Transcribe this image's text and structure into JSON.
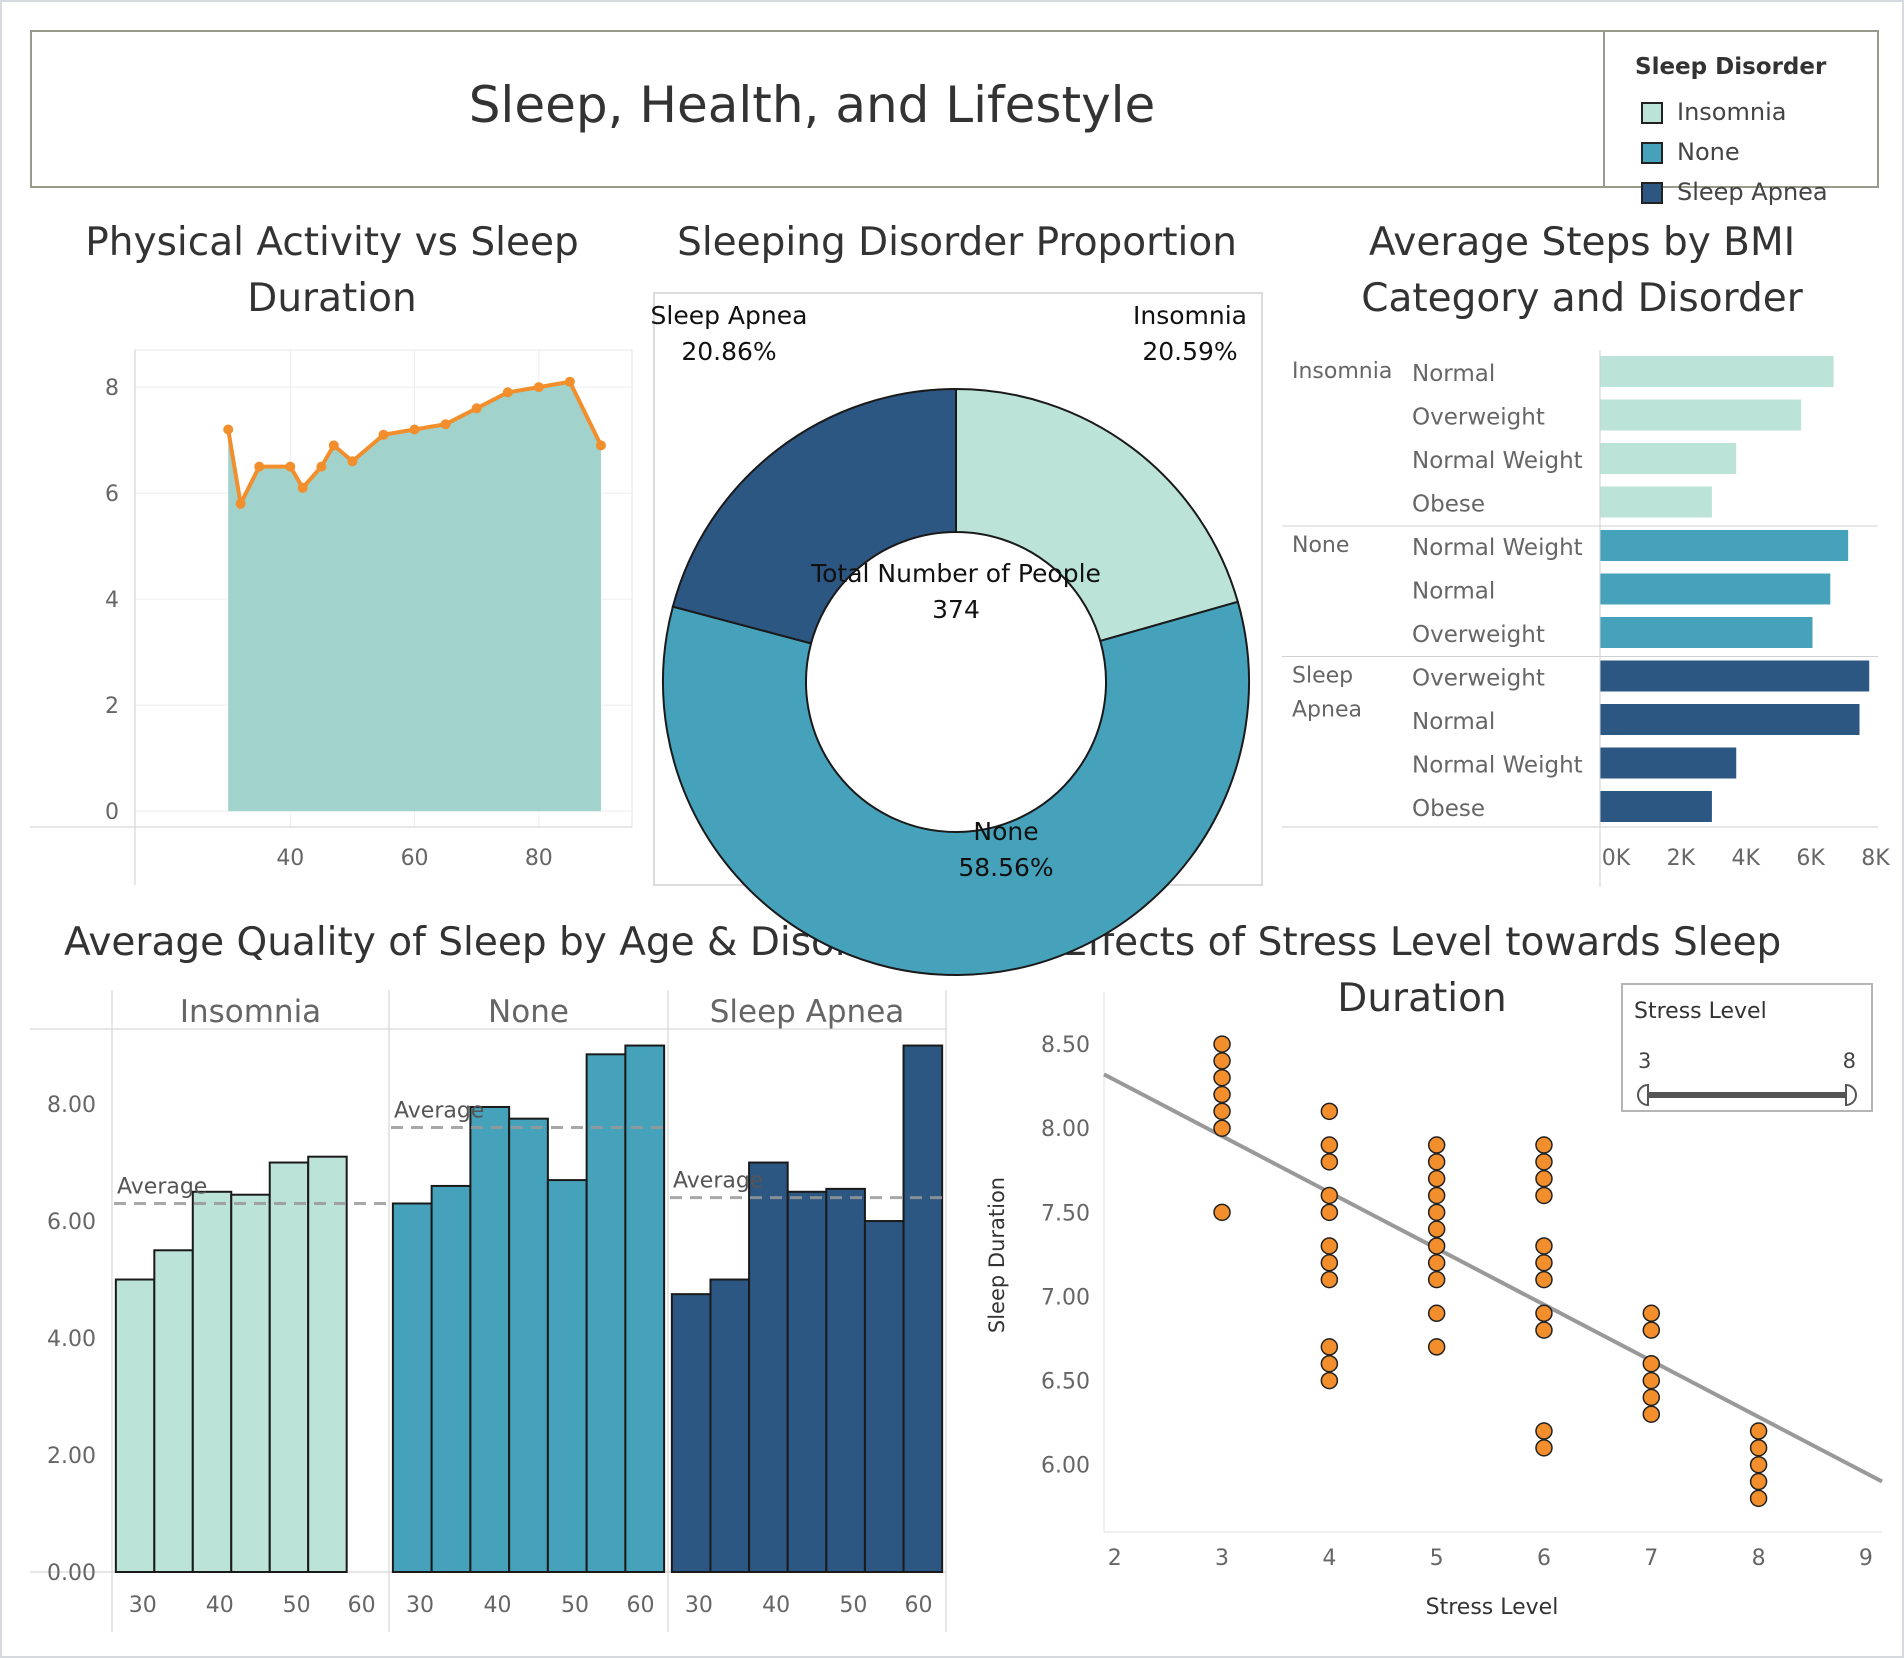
{
  "dashboard": {
    "title": "Sleep, Health, and Lifestyle",
    "legend": {
      "title": "Sleep Disorder",
      "items": [
        {
          "label": "Insomnia",
          "color": "#bbe3d8"
        },
        {
          "label": "None",
          "color": "#46a2bb"
        },
        {
          "label": "Sleep Apnea",
          "color": "#2d5783"
        }
      ]
    }
  },
  "panels": {
    "activity": {
      "title_line1": "Physical Activity vs Sleep",
      "title_line2": "Duration"
    },
    "proportion": {
      "title": "Sleeping Disorder Proportion"
    },
    "steps": {
      "title_line1": "Average Steps by BMI",
      "title_line2": "Category and Disorder"
    },
    "quality": {
      "title": "Average Quality of Sleep by Age & Disorder"
    },
    "stress": {
      "title": "Effects of Stress Level towards Sleep Duration"
    }
  },
  "chart_data": [
    {
      "id": "activity",
      "type": "line",
      "area": true,
      "x": [
        30,
        32,
        35,
        40,
        42,
        45,
        47,
        50,
        55,
        60,
        65,
        70,
        75,
        80,
        85,
        90
      ],
      "y": [
        7.2,
        5.8,
        6.5,
        6.5,
        6.1,
        6.5,
        6.9,
        6.6,
        7.1,
        7.2,
        7.3,
        7.6,
        7.9,
        8.0,
        8.1,
        6.9
      ],
      "xlim": [
        15,
        95
      ],
      "ylim": [
        -0.3,
        8.7
      ],
      "xticks": [
        40,
        60,
        80
      ],
      "yticks": [
        0,
        2,
        4,
        6,
        8
      ],
      "line_color": "#f28e2b",
      "area_color": "#a1d2cc",
      "grid": true
    },
    {
      "id": "proportion",
      "type": "pie",
      "donut": true,
      "center_label": "Total Number of People",
      "center_value": "374",
      "slices": [
        {
          "name": "Insomnia",
          "value": 20.59,
          "label": "20.59%",
          "color": "#bbe3d8"
        },
        {
          "name": "None",
          "value": 58.56,
          "label": "58.56%",
          "color": "#46a2bb"
        },
        {
          "name": "Sleep Apnea",
          "value": 20.86,
          "label": "20.86%",
          "color": "#2d5783"
        }
      ]
    },
    {
      "id": "steps",
      "type": "bar",
      "orientation": "horizontal",
      "xlim": [
        0,
        8200
      ],
      "xticks": [
        0,
        2000,
        4000,
        6000,
        8000
      ],
      "xtick_labels": [
        "0K",
        "2K",
        "4K",
        "6K",
        "8K"
      ],
      "groups": [
        {
          "name": "Insomnia",
          "color": "#bbe3d8",
          "bars": [
            {
              "category": "Normal",
              "value": 7200
            },
            {
              "category": "Overweight",
              "value": 6200
            },
            {
              "category": "Normal Weight",
              "value": 4200
            },
            {
              "category": "Obese",
              "value": 3450
            }
          ]
        },
        {
          "name": "None",
          "color": "#46a2bb",
          "bars": [
            {
              "category": "Normal Weight",
              "value": 7650
            },
            {
              "category": "Normal",
              "value": 7100
            },
            {
              "category": "Overweight",
              "value": 6550
            }
          ]
        },
        {
          "name": "Sleep Apnea",
          "color": "#2d5783",
          "bars": [
            {
              "category": "Overweight",
              "value": 8300
            },
            {
              "category": "Normal",
              "value": 8000
            },
            {
              "category": "Normal Weight",
              "value": 4200
            },
            {
              "category": "Obese",
              "value": 3450
            }
          ]
        }
      ]
    },
    {
      "id": "quality",
      "type": "bar",
      "ylim": [
        0,
        9.3
      ],
      "yticks": [
        0,
        2,
        4,
        6,
        8
      ],
      "ytick_labels": [
        "0.00",
        "2.00",
        "4.00",
        "6.00",
        "8.00"
      ],
      "xticks": [
        30,
        40,
        50,
        60
      ],
      "reference_line_label": "Average",
      "panels": [
        {
          "name": "Insomnia",
          "color": "#bbe3d8",
          "average": 6.3,
          "bars": [
            {
              "age": 29,
              "value": 5.0
            },
            {
              "age": 34,
              "value": 5.5
            },
            {
              "age": 39,
              "value": 6.5
            },
            {
              "age": 44,
              "value": 6.45
            },
            {
              "age": 49,
              "value": 7.0
            },
            {
              "age": 54,
              "value": 7.1
            }
          ]
        },
        {
          "name": "None",
          "color": "#46a2bb",
          "average": 7.6,
          "bars": [
            {
              "age": 29,
              "value": 6.3
            },
            {
              "age": 34,
              "value": 6.6
            },
            {
              "age": 39,
              "value": 7.95
            },
            {
              "age": 44,
              "value": 7.75
            },
            {
              "age": 49,
              "value": 6.7
            },
            {
              "age": 54,
              "value": 8.85
            },
            {
              "age": 59,
              "value": 9.0
            }
          ]
        },
        {
          "name": "Sleep Apnea",
          "color": "#2d5783",
          "average": 6.4,
          "bars": [
            {
              "age": 29,
              "value": 4.75
            },
            {
              "age": 34,
              "value": 5.0
            },
            {
              "age": 39,
              "value": 7.0
            },
            {
              "age": 44,
              "value": 6.5
            },
            {
              "age": 49,
              "value": 6.55
            },
            {
              "age": 54,
              "value": 6.0
            },
            {
              "age": 59,
              "value": 9.0
            }
          ]
        }
      ]
    },
    {
      "id": "stress",
      "type": "scatter",
      "xlabel": "Stress Level",
      "ylabel": "Sleep Duration",
      "xlim": [
        1.9,
        9.15
      ],
      "ylim": [
        5.6,
        8.75
      ],
      "xticks": [
        2,
        3,
        4,
        5,
        6,
        7,
        8,
        9
      ],
      "yticks": [
        6.0,
        6.5,
        7.0,
        7.5,
        8.0,
        8.5
      ],
      "ytick_labels": [
        "6.00",
        "6.50",
        "7.00",
        "7.50",
        "8.00",
        "8.50"
      ],
      "point_color": "#f28e2b",
      "points": [
        {
          "x": 3,
          "y": 8.5
        },
        {
          "x": 3,
          "y": 8.4
        },
        {
          "x": 3,
          "y": 8.3
        },
        {
          "x": 3,
          "y": 8.2
        },
        {
          "x": 3,
          "y": 8.1
        },
        {
          "x": 3,
          "y": 8.0
        },
        {
          "x": 3,
          "y": 7.5
        },
        {
          "x": 4,
          "y": 8.1
        },
        {
          "x": 4,
          "y": 7.9
        },
        {
          "x": 4,
          "y": 7.8
        },
        {
          "x": 4,
          "y": 7.6
        },
        {
          "x": 4,
          "y": 7.5
        },
        {
          "x": 4,
          "y": 7.3
        },
        {
          "x": 4,
          "y": 7.2
        },
        {
          "x": 4,
          "y": 7.1
        },
        {
          "x": 4,
          "y": 6.7
        },
        {
          "x": 4,
          "y": 6.6
        },
        {
          "x": 4,
          "y": 6.5
        },
        {
          "x": 5,
          "y": 7.9
        },
        {
          "x": 5,
          "y": 7.8
        },
        {
          "x": 5,
          "y": 7.7
        },
        {
          "x": 5,
          "y": 7.6
        },
        {
          "x": 5,
          "y": 7.5
        },
        {
          "x": 5,
          "y": 7.4
        },
        {
          "x": 5,
          "y": 7.3
        },
        {
          "x": 5,
          "y": 7.2
        },
        {
          "x": 5,
          "y": 7.1
        },
        {
          "x": 5,
          "y": 6.9
        },
        {
          "x": 5,
          "y": 6.7
        },
        {
          "x": 6,
          "y": 7.9
        },
        {
          "x": 6,
          "y": 7.8
        },
        {
          "x": 6,
          "y": 7.7
        },
        {
          "x": 6,
          "y": 7.6
        },
        {
          "x": 6,
          "y": 7.3
        },
        {
          "x": 6,
          "y": 7.2
        },
        {
          "x": 6,
          "y": 7.1
        },
        {
          "x": 6,
          "y": 6.9
        },
        {
          "x": 6,
          "y": 6.8
        },
        {
          "x": 6,
          "y": 6.2
        },
        {
          "x": 6,
          "y": 6.1
        },
        {
          "x": 7,
          "y": 6.9
        },
        {
          "x": 7,
          "y": 6.8
        },
        {
          "x": 7,
          "y": 6.6
        },
        {
          "x": 7,
          "y": 6.5
        },
        {
          "x": 7,
          "y": 6.4
        },
        {
          "x": 7,
          "y": 6.3
        },
        {
          "x": 8,
          "y": 6.2
        },
        {
          "x": 8,
          "y": 6.1
        },
        {
          "x": 8,
          "y": 6.0
        },
        {
          "x": 8,
          "y": 5.9
        },
        {
          "x": 8,
          "y": 5.8
        }
      ],
      "trend_line": {
        "x1": 1.9,
        "y1": 8.32,
        "x2": 9.15,
        "y2": 5.9,
        "color": "#999999"
      },
      "filter": {
        "title": "Stress Level",
        "min": "3",
        "max": "8"
      }
    }
  ]
}
